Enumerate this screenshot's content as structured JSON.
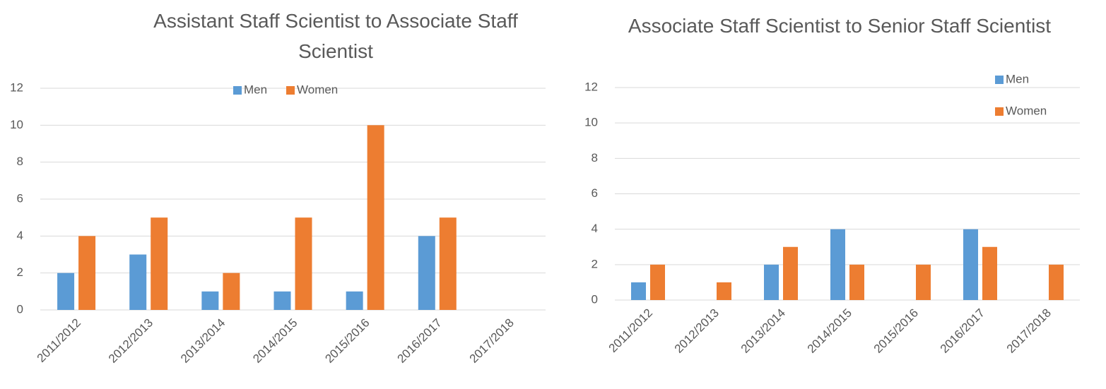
{
  "chart_data": [
    {
      "type": "bar",
      "title": "Assistant Staff Scientist to Associate Staff Scientist",
      "categories": [
        "2011/2012",
        "2012/2013",
        "2013/2014",
        "2014/2015",
        "2015/2016",
        "2016/2017",
        "2017/2018"
      ],
      "series": [
        {
          "name": "Men",
          "color": "#5b9bd5",
          "values": [
            2,
            3,
            1,
            1,
            1,
            4,
            0
          ]
        },
        {
          "name": "Women",
          "color": "#ed7d31",
          "values": [
            4,
            5,
            2,
            5,
            10,
            5,
            0
          ]
        }
      ],
      "ylim": [
        0,
        12
      ],
      "yticks": [
        0,
        2,
        4,
        6,
        8,
        10,
        12
      ],
      "grid": true,
      "legend": "top"
    },
    {
      "type": "bar",
      "title": "Associate Staff Scientist to Senior Staff Scientist",
      "categories": [
        "2011/2012",
        "2012/2013",
        "2013/2014",
        "2014/2015",
        "2015/2016",
        "2016/2017",
        "2017/2018"
      ],
      "series": [
        {
          "name": "Men",
          "color": "#5b9bd5",
          "values": [
            1,
            0,
            2,
            4,
            0,
            4,
            0
          ]
        },
        {
          "name": "Women",
          "color": "#ed7d31",
          "values": [
            2,
            1,
            3,
            2,
            2,
            3,
            2
          ]
        }
      ],
      "ylim": [
        0,
        12
      ],
      "yticks": [
        0,
        2,
        4,
        6,
        8,
        10,
        12
      ],
      "grid": true,
      "legend": "right"
    }
  ]
}
